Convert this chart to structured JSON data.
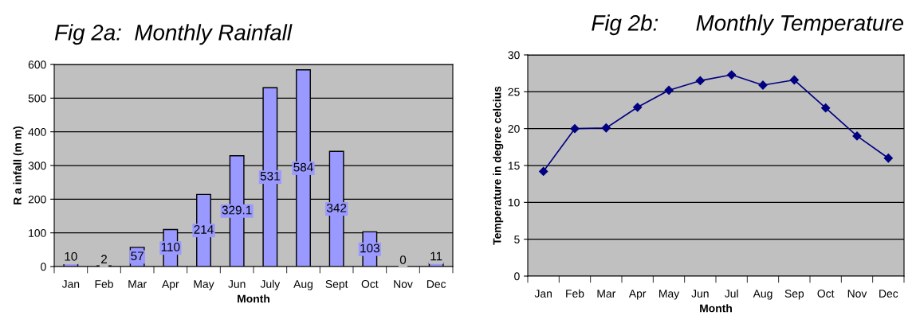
{
  "chart_data": [
    {
      "type": "bar",
      "title": "Fig 2a:  Monthly Rainfall",
      "xlabel": "Month",
      "ylabel": "R a infall (m m)",
      "categories": [
        "Jan",
        "Feb",
        "Mar",
        "Apr",
        "May",
        "Jun",
        "July",
        "Aug",
        "Sept",
        "Oct",
        "Nov",
        "Dec"
      ],
      "values": [
        10,
        2,
        57,
        110,
        214,
        329.1,
        531,
        584,
        342,
        103,
        0,
        11
      ],
      "color": "#9999ff",
      "ylim": [
        0,
        600
      ],
      "yticks": [
        0,
        100,
        200,
        300,
        400,
        500,
        600
      ],
      "grid": "y",
      "data_labels": true,
      "legend": false
    },
    {
      "type": "line",
      "title": "Fig 2b:      Monthly Temperature",
      "xlabel": "Month",
      "ylabel": "Temperature in degree celcius",
      "categories": [
        "Jan",
        "Feb",
        "Mar",
        "Apr",
        "May",
        "Jun",
        "Jul",
        "Aug",
        "Sep",
        "Oct",
        "Nov",
        "Dec"
      ],
      "values": [
        14.2,
        20,
        20.1,
        22.9,
        25.2,
        26.5,
        27.3,
        25.9,
        26.6,
        22.8,
        19.0,
        16.0
      ],
      "color": "#000080",
      "marker": "diamond",
      "line_style": "solid",
      "ylim": [
        0,
        30
      ],
      "yticks": [
        0,
        5,
        10,
        15,
        20,
        25,
        30
      ],
      "grid": "y",
      "legend": false
    }
  ]
}
